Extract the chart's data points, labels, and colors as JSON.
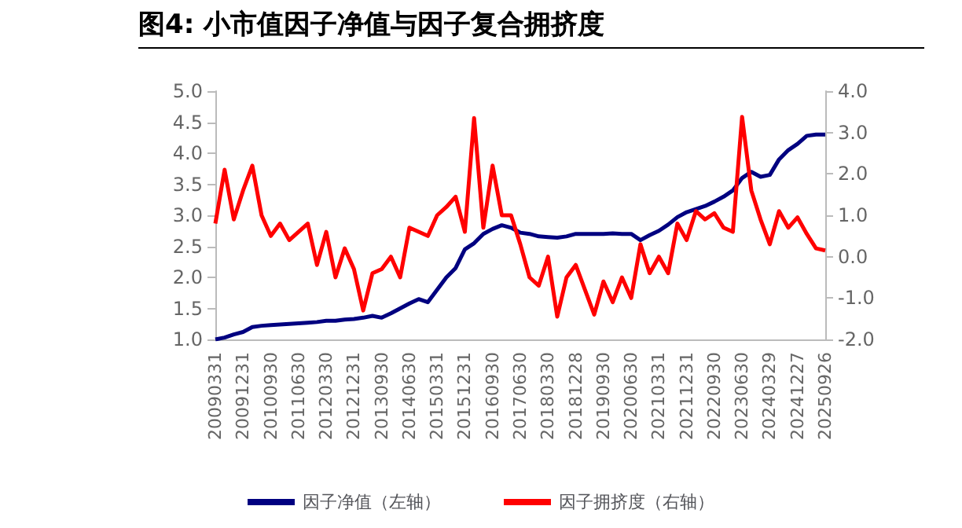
{
  "chart_data": {
    "type": "line",
    "title": "图4:  小市值因子净值与因子复合拥挤度",
    "categories": [
      "20090331",
      null,
      null,
      "20091231",
      null,
      null,
      "20100930",
      null,
      null,
      "20110630",
      null,
      null,
      "20120330",
      null,
      null,
      "20121231",
      null,
      null,
      "20130930",
      null,
      null,
      "20140630",
      null,
      null,
      "20150331",
      null,
      null,
      "20151231",
      null,
      null,
      "20160930",
      null,
      null,
      "20170630",
      null,
      null,
      "20180330",
      null,
      null,
      "20181228",
      null,
      null,
      "20190930",
      null,
      null,
      "20200630",
      null,
      null,
      "20210331",
      null,
      null,
      "20211231",
      null,
      null,
      "20220930",
      null,
      null,
      "20230630",
      null,
      null,
      "20240329",
      null,
      null,
      "20241227",
      null,
      null,
      "20250926"
    ],
    "series": [
      {
        "name": "因子净值（左轴）",
        "color": "#000080",
        "values": [
          1.0,
          1.03,
          1.08,
          1.12,
          1.2,
          1.22,
          1.23,
          1.24,
          1.25,
          1.26,
          1.27,
          1.28,
          1.3,
          1.3,
          1.32,
          1.33,
          1.35,
          1.38,
          1.35,
          1.42,
          1.5,
          1.58,
          1.65,
          1.6,
          1.8,
          2.0,
          2.15,
          2.45,
          2.55,
          2.7,
          2.78,
          2.84,
          2.8,
          2.72,
          2.7,
          2.66,
          2.65,
          2.64,
          2.66,
          2.7,
          2.7,
          2.7,
          2.7,
          2.71,
          2.7,
          2.7,
          2.6,
          2.68,
          2.75,
          2.85,
          2.97,
          3.05,
          3.1,
          3.15,
          3.22,
          3.3,
          3.4,
          3.6,
          3.7,
          3.62,
          3.65,
          3.9,
          4.05,
          4.15,
          4.28,
          4.3,
          4.3
        ]
      },
      {
        "name": "因子拥挤度（右轴）",
        "color": "#ff0000",
        "axis": "y2",
        "values": [
          0.8,
          2.1,
          0.9,
          1.6,
          2.2,
          1.0,
          0.5,
          0.8,
          0.4,
          0.6,
          0.8,
          -0.2,
          0.6,
          -0.5,
          0.2,
          -0.3,
          -1.3,
          -0.4,
          -0.3,
          0.0,
          -0.5,
          0.7,
          0.6,
          0.5,
          1.0,
          1.2,
          1.45,
          0.6,
          3.35,
          0.7,
          2.2,
          1.0,
          1.0,
          0.3,
          -0.5,
          -0.7,
          0.0,
          -1.45,
          -0.5,
          -0.2,
          -0.8,
          -1.4,
          -0.6,
          -1.1,
          -0.5,
          -1.0,
          0.3,
          -0.4,
          0.0,
          -0.4,
          0.8,
          0.4,
          1.1,
          0.9,
          1.05,
          0.7,
          0.6,
          3.38,
          1.6,
          0.9,
          0.3,
          1.1,
          0.7,
          0.95,
          0.55,
          0.2,
          0.15
        ]
      }
    ],
    "ylim": [
      1.0,
      5.0
    ],
    "yticks": [
      {
        "value": 1,
        "label": "1.0"
      },
      {
        "value": 1.5,
        "label": "1.5"
      },
      {
        "value": 2,
        "label": "2.0"
      },
      {
        "value": 2.5,
        "label": "2.5"
      },
      {
        "value": 3,
        "label": "3.0"
      },
      {
        "value": 3.5,
        "label": "3.5"
      },
      {
        "value": 4,
        "label": "4.0"
      },
      {
        "value": 4.5,
        "label": "4.5"
      },
      {
        "value": 5,
        "label": "5.0"
      }
    ],
    "y2lim": [
      -2.0,
      4.0
    ],
    "y2ticks": [
      {
        "value": -2,
        "label": "-2.0"
      },
      {
        "value": -1,
        "label": "-1.0"
      },
      {
        "value": 0,
        "label": "0.0"
      },
      {
        "value": 1,
        "label": "1.0"
      },
      {
        "value": 2,
        "label": "2.0"
      },
      {
        "value": 3,
        "label": "3.0"
      },
      {
        "value": 4,
        "label": "4.0"
      }
    ],
    "grid": false,
    "legend": "bottom",
    "marker": "none",
    "line_style": "solid"
  }
}
